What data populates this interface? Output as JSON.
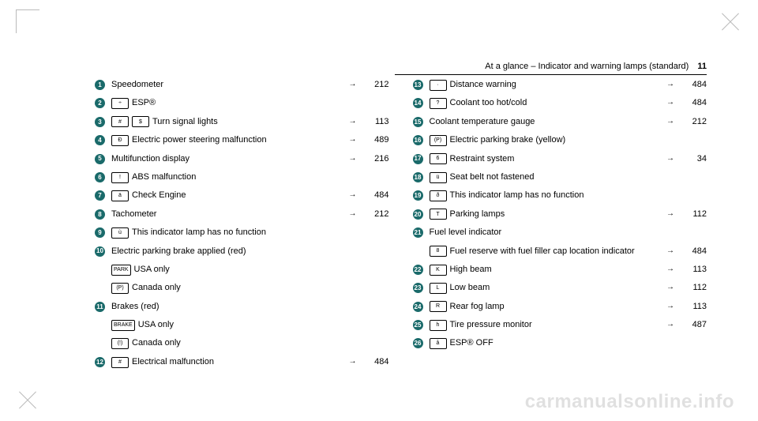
{
  "header": {
    "title": "At a glance – Indicator and warning lamps (standard)",
    "page": "11"
  },
  "watermark": "carmanualsonline.info",
  "left": [
    {
      "n": "1",
      "syms": [],
      "label": "Speedometer",
      "ref": "212"
    },
    {
      "n": "2",
      "syms": [
        "÷"
      ],
      "label": "ESP®",
      "ref": ""
    },
    {
      "n": "3",
      "syms": [
        "#",
        "$"
      ],
      "label": "Turn signal lights",
      "ref": "113"
    },
    {
      "n": "4",
      "syms": [
        "Ð"
      ],
      "label": "Electric power steering malfunction",
      "ref": "489"
    },
    {
      "n": "5",
      "syms": [],
      "label": "Multifunction display",
      "ref": "216"
    },
    {
      "n": "6",
      "syms": [
        "!"
      ],
      "label": "ABS malfunction",
      "ref": ""
    },
    {
      "n": "7",
      "syms": [
        "ä"
      ],
      "label": "Check Engine",
      "ref": "484"
    },
    {
      "n": "8",
      "syms": [],
      "label": "Tachometer",
      "ref": "212"
    },
    {
      "n": "9",
      "syms": [
        "ù"
      ],
      "label": "This indicator lamp has no function",
      "ref": ""
    },
    {
      "n": "10",
      "syms": [],
      "label": "Electric parking brake applied (red)",
      "ref": "",
      "subs": [
        {
          "sym": "PARK",
          "label": "USA only"
        },
        {
          "sym": "(P)",
          "label": "Canada only"
        }
      ]
    },
    {
      "n": "11",
      "syms": [],
      "label": "Brakes (red)",
      "ref": "",
      "subs": [
        {
          "sym": "BRAKE",
          "label": "USA only"
        },
        {
          "sym": "(!)",
          "label": "Canada only"
        }
      ]
    },
    {
      "n": "12",
      "syms": [
        "#"
      ],
      "label": "Electrical malfunction",
      "ref": "484"
    }
  ],
  "right": [
    {
      "n": "13",
      "syms": [
        "·"
      ],
      "label": "Distance warning",
      "ref": "484"
    },
    {
      "n": "14",
      "syms": [
        "?"
      ],
      "label": "Coolant too hot/cold",
      "ref": "484"
    },
    {
      "n": "15",
      "syms": [],
      "label": "Coolant temperature gauge",
      "ref": "212"
    },
    {
      "n": "16",
      "syms": [
        "(P)"
      ],
      "label": "Electric parking brake (yellow)",
      "ref": ""
    },
    {
      "n": "17",
      "syms": [
        "6"
      ],
      "label": "Restraint system",
      "ref": "34"
    },
    {
      "n": "18",
      "syms": [
        "ü"
      ],
      "label": "Seat belt not fastened",
      "ref": ""
    },
    {
      "n": "19",
      "syms": [
        "ð"
      ],
      "label": "This indicator lamp has no function",
      "ref": ""
    },
    {
      "n": "20",
      "syms": [
        "T"
      ],
      "label": "Parking lamps",
      "ref": "112"
    },
    {
      "n": "21",
      "syms": [],
      "label": "Fuel level indicator",
      "ref": "",
      "subs": [
        {
          "sym": "8",
          "label": "Fuel reserve with fuel filler cap location indicator",
          "ref": "484"
        }
      ]
    },
    {
      "n": "22",
      "syms": [
        "K"
      ],
      "label": "High beam",
      "ref": "113"
    },
    {
      "n": "23",
      "syms": [
        "L"
      ],
      "label": "Low beam",
      "ref": "112"
    },
    {
      "n": "24",
      "syms": [
        "R"
      ],
      "label": "Rear fog lamp",
      "ref": "113"
    },
    {
      "n": "25",
      "syms": [
        "h"
      ],
      "label": "Tire pressure monitor",
      "ref": "487"
    },
    {
      "n": "26",
      "syms": [
        "å"
      ],
      "label": "ESP® OFF",
      "ref": ""
    }
  ]
}
